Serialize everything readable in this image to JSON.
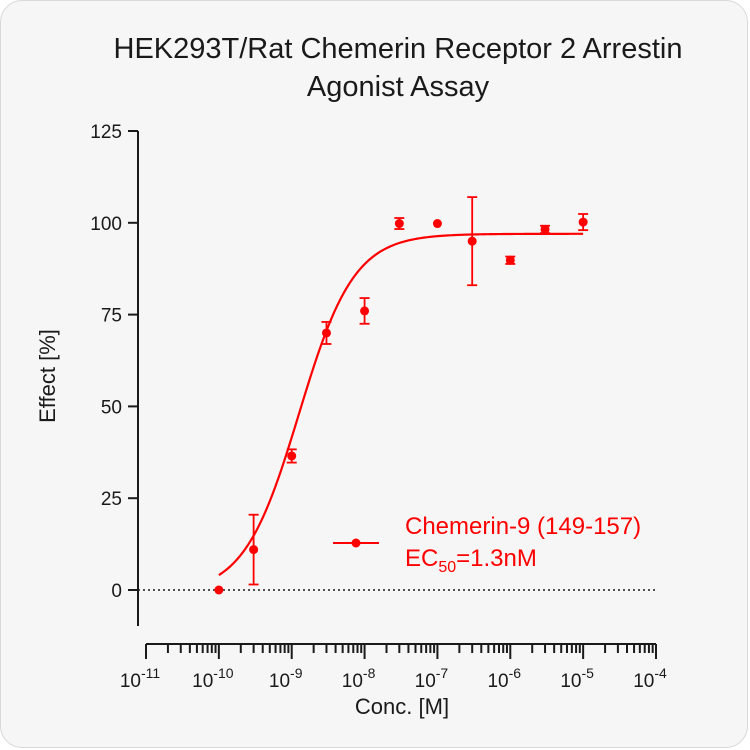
{
  "chart_data": {
    "type": "scatter",
    "title": [
      "HEK293T/Rat Chemerin Receptor 2 Arrestin",
      "Agonist Assay"
    ],
    "xlabel": "Conc. [M]",
    "ylabel": "Effect  [%]",
    "x_scale": "log",
    "xlim": [
      1e-11,
      0.0001
    ],
    "ylim": [
      -10,
      125
    ],
    "x_ticks": [
      {
        "base": "10",
        "exp": "-11",
        "value": 1e-11
      },
      {
        "base": "10",
        "exp": "-10",
        "value": 1e-10
      },
      {
        "base": "10",
        "exp": "-9",
        "value": 1e-09
      },
      {
        "base": "10",
        "exp": "-8",
        "value": 1e-08
      },
      {
        "base": "10",
        "exp": "-7",
        "value": 1e-07
      },
      {
        "base": "10",
        "exp": "-6",
        "value": 1e-06
      },
      {
        "base": "10",
        "exp": "-5",
        "value": 1e-05
      },
      {
        "base": "10",
        "exp": "-4",
        "value": 0.0001
      }
    ],
    "y_ticks": [
      "0",
      "25",
      "50",
      "75",
      "100",
      "125"
    ],
    "zero_line": "dotted",
    "legend_position": "lower-right",
    "series": [
      {
        "name": "Chemerin-9 (149-157)",
        "annotation": {
          "prefix": "EC",
          "sub": "50",
          "suffix": "=1.3nM"
        },
        "color": "#ff0000",
        "points": [
          {
            "x": 1e-10,
            "y": 0,
            "err": 0
          },
          {
            "x": 3e-10,
            "y": 11,
            "err": 9.5
          },
          {
            "x": 1e-09,
            "y": 36.5,
            "err": 1.8
          },
          {
            "x": 3e-09,
            "y": 70,
            "err": 3
          },
          {
            "x": 1e-08,
            "y": 76,
            "err": 3.5
          },
          {
            "x": 3e-08,
            "y": 99.8,
            "err": 1.5
          },
          {
            "x": 1e-07,
            "y": 99.8,
            "err": 0
          },
          {
            "x": 3e-07,
            "y": 95,
            "err": 12
          },
          {
            "x": 1e-06,
            "y": 89.8,
            "err": 1
          },
          {
            "x": 3e-06,
            "y": 98.2,
            "err": 1
          },
          {
            "x": 1e-05,
            "y": 100.2,
            "err": 2.2
          }
        ],
        "fit": {
          "model": "4PL",
          "bottom": -1,
          "top": 97,
          "logEC50": -8.9,
          "hill": 1.15,
          "x_start": 1e-10,
          "x_end": 1e-05
        }
      }
    ]
  }
}
